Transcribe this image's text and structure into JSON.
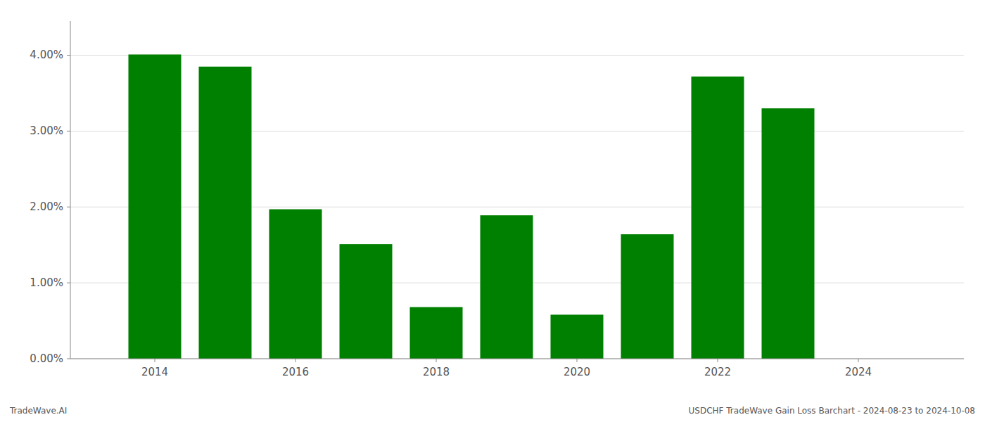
{
  "chart_data": {
    "type": "bar",
    "x": [
      2014,
      2015,
      2016,
      2017,
      2018,
      2019,
      2020,
      2021,
      2022,
      2023
    ],
    "values": [
      0.0401,
      0.0385,
      0.0197,
      0.0151,
      0.0068,
      0.0189,
      0.0058,
      0.0164,
      0.0372,
      0.033
    ],
    "color": "#008000",
    "xlim": [
      2012.8,
      2025.5
    ],
    "xticks": [
      2014,
      2016,
      2018,
      2020,
      2022,
      2024
    ],
    "ylim": [
      0,
      0.0445
    ],
    "yticks": [
      {
        "value": 0.0,
        "label": "0.00%"
      },
      {
        "value": 0.01,
        "label": "1.00%"
      },
      {
        "value": 0.02,
        "label": "2.00%"
      },
      {
        "value": 0.03,
        "label": "3.00%"
      },
      {
        "value": 0.04,
        "label": "4.00%"
      }
    ],
    "grid": true,
    "annotations": [
      "TradeWave.AI",
      "USDCHF TradeWave Gain Loss Barchart - 2024-08-23 to 2024-10-08"
    ]
  }
}
